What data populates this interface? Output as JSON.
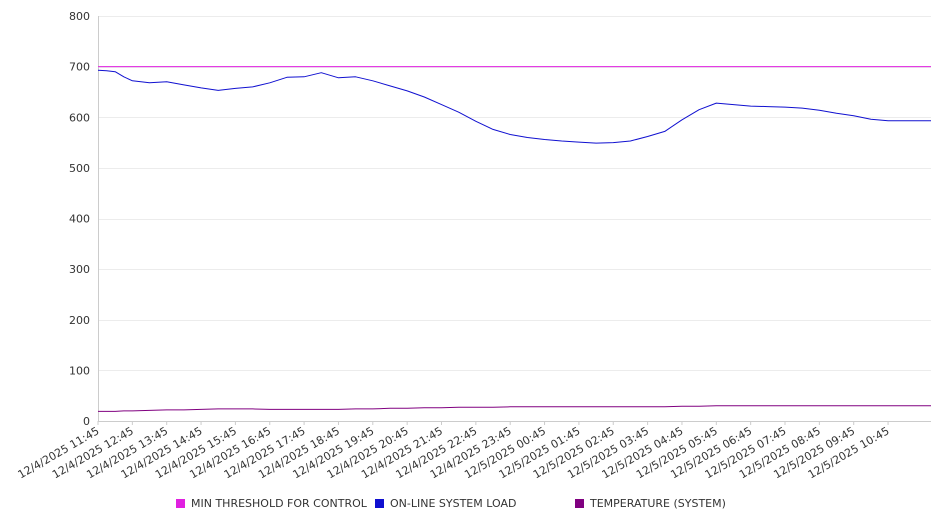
{
  "chart_data": {
    "type": "line",
    "ylim": [
      0,
      800
    ],
    "yticks": [
      "0",
      "100",
      "200",
      "300",
      "400",
      "500",
      "600",
      "700",
      "800"
    ],
    "grid": true,
    "legend_position": "bottom",
    "x_tick_labels": [
      "12/4/2025 11:45",
      "12/4/2025 12:45",
      "12/4/2025 13:45",
      "12/4/2025 14:45",
      "12/4/2025 15:45",
      "12/4/2025 16:45",
      "12/4/2025 17:45",
      "12/4/2025 18:45",
      "12/4/2025 19:45",
      "12/4/2025 20:45",
      "12/4/2025 21:45",
      "12/4/2025 22:45",
      "12/4/2025 23:45",
      "12/5/2025 00:45",
      "12/5/2025 01:45",
      "12/5/2025 02:45",
      "12/5/2025 03:45",
      "12/5/2025 04:45",
      "12/5/2025 05:45",
      "12/5/2025 06:45",
      "12/5/2025 07:45",
      "12/5/2025 08:45",
      "12/5/2025 09:45",
      "12/5/2025 10:45"
    ],
    "x_hours": [
      0,
      0.25,
      0.5,
      0.75,
      1,
      1.5,
      2,
      2.5,
      3,
      3.5,
      4,
      4.5,
      5,
      5.5,
      6,
      6.5,
      7,
      7.5,
      8,
      8.5,
      9,
      9.5,
      10,
      10.5,
      11,
      11.5,
      12,
      12.5,
      13,
      13.5,
      14,
      14.5,
      15,
      15.5,
      16,
      16.5,
      17,
      17.5,
      18,
      18.5,
      19,
      19.5,
      20,
      20.5,
      21,
      21.5,
      22,
      22.5,
      23,
      23.5,
      24,
      24.25
    ],
    "series": [
      {
        "name": "MIN THRESHOLD FOR CONTROL",
        "color": "#e020e0",
        "values": [
          700,
          700,
          700,
          700,
          700,
          700,
          700,
          700,
          700,
          700,
          700,
          700,
          700,
          700,
          700,
          700,
          700,
          700,
          700,
          700,
          700,
          700,
          700,
          700,
          700,
          700,
          700,
          700,
          700,
          700,
          700,
          700,
          700,
          700,
          700,
          700,
          700,
          700,
          700,
          700,
          700,
          700,
          700,
          700,
          700,
          700,
          700,
          700,
          700,
          700,
          700,
          700
        ]
      },
      {
        "name": "ON-LINE SYSTEM LOAD",
        "color": "#1010d0",
        "values": [
          693,
          692,
          690,
          680,
          672,
          668,
          670,
          664,
          658,
          653,
          657,
          660,
          668,
          679,
          680,
          688,
          678,
          680,
          672,
          662,
          652,
          640,
          625,
          610,
          592,
          576,
          566,
          560,
          556,
          553,
          551,
          549,
          550,
          553,
          562,
          572,
          595,
          615,
          628,
          625,
          622,
          621,
          620,
          618,
          614,
          608,
          603,
          596,
          593,
          593,
          593,
          593
        ]
      },
      {
        "name": "TEMPERATURE (SYSTEM)",
        "color": "#800080",
        "values": [
          19,
          19,
          19,
          20,
          20,
          21,
          22,
          22,
          23,
          24,
          24,
          24,
          23,
          23,
          23,
          23,
          23,
          24,
          24,
          25,
          25,
          26,
          26,
          27,
          27,
          27,
          28,
          28,
          28,
          28,
          28,
          28,
          28,
          28,
          28,
          28,
          29,
          29,
          30,
          30,
          30,
          30,
          30,
          30,
          30,
          30,
          30,
          30,
          30,
          30,
          30,
          30
        ]
      }
    ]
  }
}
